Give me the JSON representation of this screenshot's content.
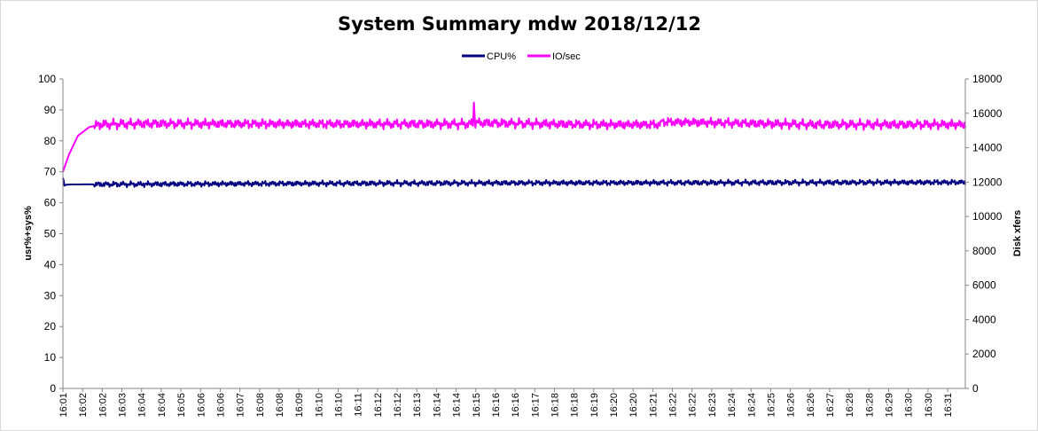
{
  "chart_data": {
    "type": "line",
    "title": "System Summary mdw  2018/12/12",
    "ylabel_left": "usr%+sys%",
    "ylabel_right": "Disk xfers",
    "ylim_left": [
      0,
      100
    ],
    "ylim_right": [
      0,
      18000
    ],
    "yticks_left": [
      "0",
      "10",
      "20",
      "30",
      "40",
      "50",
      "60",
      "70",
      "80",
      "90",
      "100"
    ],
    "yticks_right": [
      "0",
      "2000",
      "4000",
      "6000",
      "8000",
      "10000",
      "12000",
      "14000",
      "16000",
      "18000"
    ],
    "x_categories": [
      "16:01",
      "16:02",
      "16:02",
      "16:03",
      "16:04",
      "16:04",
      "16:05",
      "16:06",
      "16:06",
      "16:07",
      "16:08",
      "16:08",
      "16:09",
      "16:10",
      "16:10",
      "16:11",
      "16:12",
      "16:12",
      "16:13",
      "16:14",
      "16:14",
      "16:15",
      "16:16",
      "16:16",
      "16:17",
      "16:18",
      "16:18",
      "16:19",
      "16:20",
      "16:20",
      "16:21",
      "16:22",
      "16:22",
      "16:23",
      "16:24",
      "16:24",
      "16:25",
      "16:26",
      "16:26",
      "16:27",
      "16:28",
      "16:28",
      "16:29",
      "16:30",
      "16:30",
      "16:31"
    ],
    "legend_position": "top-center",
    "grid": false,
    "series": [
      {
        "name": "CPU%",
        "axis": "left",
        "color": "#000080",
        "key_points": [
          [
            0,
            68.0
          ],
          [
            1,
            67.2
          ],
          [
            2,
            65.5
          ],
          [
            4,
            65.8
          ],
          [
            10,
            65.9
          ],
          [
            100,
            66.0
          ],
          [
            300,
            66.2
          ],
          [
            600,
            66.4
          ],
          [
            900,
            66.5
          ],
          [
            1199,
            66.6
          ]
        ],
        "oscillation": 0.7,
        "values_note_unused": ""
      },
      {
        "name": "IO/sec",
        "axis": "right",
        "color": "#ff00ff",
        "key_points": [
          [
            0,
            12600
          ],
          [
            8,
            13600
          ],
          [
            20,
            14700
          ],
          [
            35,
            15200
          ],
          [
            50,
            15350
          ],
          [
            100,
            15400
          ],
          [
            400,
            15380
          ],
          [
            540,
            15380
          ],
          [
            545,
            15420
          ],
          [
            546,
            16700
          ],
          [
            547,
            15900
          ],
          [
            548,
            15450
          ],
          [
            700,
            15350
          ],
          [
            795,
            15350
          ],
          [
            796,
            15650
          ],
          [
            798,
            15500
          ],
          [
            1000,
            15350
          ],
          [
            1199,
            15350
          ]
        ],
        "oscillation": 220
      }
    ]
  }
}
